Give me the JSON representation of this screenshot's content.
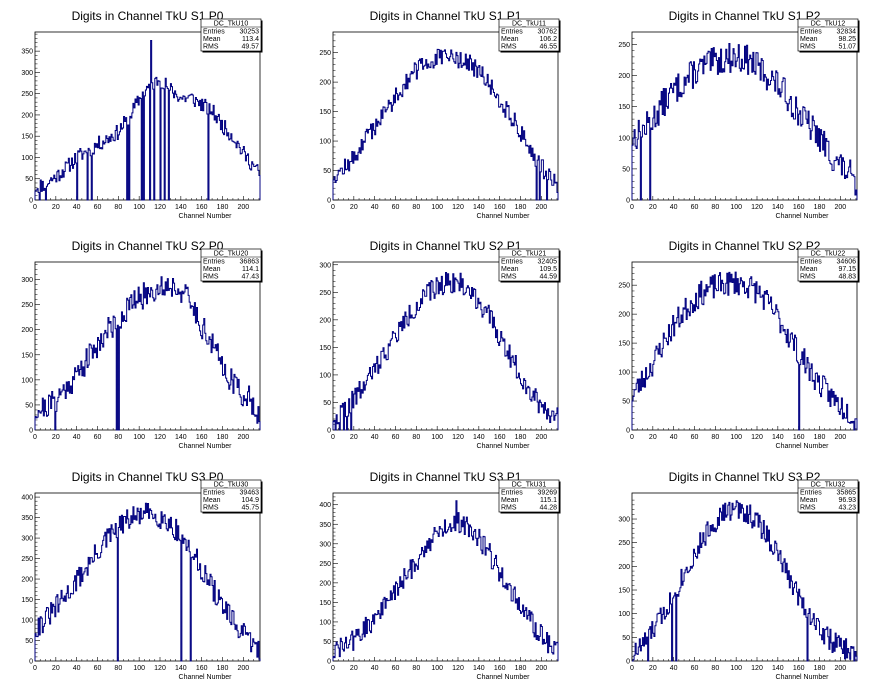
{
  "colors": {
    "line": "#000080",
    "frame": "#000000",
    "background": "#ffffff"
  },
  "chart_data": [
    {
      "type": "histogram",
      "title": "Digits in Channel TkU S1 P0",
      "xlabel": "Channel Number",
      "ylabel": "",
      "xlim": [
        0,
        216
      ],
      "ylim": [
        0,
        395
      ],
      "xticks": [
        0,
        20,
        40,
        60,
        80,
        100,
        120,
        140,
        160,
        180,
        200
      ],
      "yticks": [
        0,
        50,
        100,
        150,
        200,
        250,
        300,
        350
      ],
      "stats": {
        "name": "DC_TkU10",
        "entries": "30253",
        "mean": "113.4",
        "rms": "49.57"
      },
      "profile": [
        [
          0,
          30
        ],
        [
          10,
          38
        ],
        [
          20,
          55
        ],
        [
          30,
          75
        ],
        [
          40,
          100
        ],
        [
          50,
          115
        ],
        [
          60,
          130
        ],
        [
          70,
          145
        ],
        [
          80,
          160
        ],
        [
          90,
          195
        ],
        [
          100,
          235
        ],
        [
          110,
          270
        ],
        [
          120,
          285
        ],
        [
          130,
          260
        ],
        [
          140,
          240
        ],
        [
          150,
          240
        ],
        [
          160,
          225
        ],
        [
          170,
          210
        ],
        [
          180,
          175
        ],
        [
          190,
          150
        ],
        [
          200,
          110
        ],
        [
          210,
          80
        ],
        [
          216,
          60
        ]
      ],
      "drops": [
        [
          4,
          0
        ],
        [
          10,
          0
        ],
        [
          40,
          0
        ],
        [
          50,
          0
        ],
        [
          54,
          0
        ],
        [
          88,
          0
        ],
        [
          90,
          0
        ],
        [
          102,
          0
        ],
        [
          104,
          0
        ],
        [
          110,
          0
        ],
        [
          114,
          0
        ],
        [
          120,
          0
        ],
        [
          124,
          0
        ],
        [
          128,
          0
        ],
        [
          166,
          0
        ]
      ],
      "spikes": [
        [
          111,
          375
        ]
      ],
      "noise": 9,
      "seed": 11
    },
    {
      "type": "histogram",
      "title": "Digits in Channel TkU S1 P1",
      "xlabel": "Channel Number",
      "ylabel": "",
      "xlim": [
        0,
        216
      ],
      "ylim": [
        0,
        285
      ],
      "xticks": [
        0,
        20,
        40,
        60,
        80,
        100,
        120,
        140,
        160,
        180,
        200
      ],
      "yticks": [
        0,
        50,
        100,
        150,
        200,
        250
      ],
      "stats": {
        "name": "DC_TkU11",
        "entries": "30762",
        "mean": "106.2",
        "rms": "46.55"
      },
      "profile": [
        [
          0,
          42
        ],
        [
          10,
          52
        ],
        [
          20,
          70
        ],
        [
          30,
          100
        ],
        [
          40,
          125
        ],
        [
          50,
          150
        ],
        [
          60,
          175
        ],
        [
          70,
          200
        ],
        [
          80,
          220
        ],
        [
          90,
          232
        ],
        [
          100,
          240
        ],
        [
          110,
          242
        ],
        [
          120,
          240
        ],
        [
          130,
          232
        ],
        [
          140,
          218
        ],
        [
          150,
          195
        ],
        [
          160,
          170
        ],
        [
          170,
          145
        ],
        [
          180,
          115
        ],
        [
          190,
          85
        ],
        [
          200,
          55
        ],
        [
          210,
          40
        ],
        [
          216,
          25
        ]
      ],
      "drops": [
        [
          195,
          0
        ],
        [
          198,
          0
        ],
        [
          205,
          0
        ]
      ],
      "spikes": [],
      "noise": 8,
      "seed": 12
    },
    {
      "type": "histogram",
      "title": "Digits in Channel TkU S1 P2",
      "xlabel": "Channel Number",
      "ylabel": "",
      "xlim": [
        0,
        216
      ],
      "ylim": [
        0,
        270
      ],
      "xticks": [
        0,
        20,
        40,
        60,
        80,
        100,
        120,
        140,
        160,
        180,
        200
      ],
      "yticks": [
        0,
        50,
        100,
        150,
        200,
        250
      ],
      "stats": {
        "name": "DC_TkU12",
        "entries": "32834",
        "mean": "98.25",
        "rms": "51.07"
      },
      "profile": [
        [
          0,
          100
        ],
        [
          10,
          110
        ],
        [
          20,
          130
        ],
        [
          30,
          155
        ],
        [
          40,
          175
        ],
        [
          50,
          190
        ],
        [
          60,
          205
        ],
        [
          70,
          215
        ],
        [
          80,
          222
        ],
        [
          90,
          228
        ],
        [
          100,
          230
        ],
        [
          110,
          226
        ],
        [
          120,
          215
        ],
        [
          130,
          200
        ],
        [
          140,
          185
        ],
        [
          150,
          165
        ],
        [
          160,
          140
        ],
        [
          170,
          120
        ],
        [
          180,
          100
        ],
        [
          190,
          75
        ],
        [
          200,
          55
        ],
        [
          210,
          40
        ],
        [
          216,
          0
        ]
      ],
      "drops": [
        [
          8,
          0
        ],
        [
          17,
          0
        ]
      ],
      "spikes": [],
      "noise": 12,
      "seed": 13
    },
    {
      "type": "histogram",
      "title": "Digits in Channel TkU S2 P0",
      "xlabel": "Channel Number",
      "ylabel": "",
      "xlim": [
        0,
        216
      ],
      "ylim": [
        0,
        335
      ],
      "xticks": [
        0,
        20,
        40,
        60,
        80,
        100,
        120,
        140,
        160,
        180,
        200
      ],
      "yticks": [
        0,
        50,
        100,
        150,
        200,
        250,
        300
      ],
      "stats": {
        "name": "DC_TkU20",
        "entries": "36863",
        "mean": "114.1",
        "rms": "47.43"
      },
      "profile": [
        [
          0,
          40
        ],
        [
          10,
          45
        ],
        [
          20,
          60
        ],
        [
          30,
          85
        ],
        [
          40,
          110
        ],
        [
          50,
          140
        ],
        [
          60,
          170
        ],
        [
          70,
          200
        ],
        [
          80,
          220
        ],
        [
          90,
          245
        ],
        [
          100,
          262
        ],
        [
          110,
          275
        ],
        [
          120,
          285
        ],
        [
          130,
          290
        ],
        [
          140,
          280
        ],
        [
          150,
          250
        ],
        [
          160,
          210
        ],
        [
          170,
          170
        ],
        [
          180,
          130
        ],
        [
          190,
          95
        ],
        [
          200,
          70
        ],
        [
          210,
          55
        ],
        [
          216,
          25
        ]
      ],
      "drops": [
        [
          19,
          0
        ],
        [
          78,
          0
        ],
        [
          80,
          0
        ]
      ],
      "spikes": [],
      "noise": 13,
      "seed": 21
    },
    {
      "type": "histogram",
      "title": "Digits in Channel TkU S2 P1",
      "xlabel": "Channel Number",
      "ylabel": "",
      "xlim": [
        0,
        216
      ],
      "ylim": [
        0,
        305
      ],
      "xticks": [
        0,
        20,
        40,
        60,
        80,
        100,
        120,
        140,
        160,
        180,
        200
      ],
      "yticks": [
        0,
        50,
        100,
        150,
        200,
        250,
        300
      ],
      "stats": {
        "name": "DC_TkU21",
        "entries": "32405",
        "mean": "109.5",
        "rms": "44.59"
      },
      "profile": [
        [
          0,
          25
        ],
        [
          10,
          35
        ],
        [
          20,
          55
        ],
        [
          30,
          80
        ],
        [
          40,
          110
        ],
        [
          50,
          140
        ],
        [
          60,
          170
        ],
        [
          70,
          200
        ],
        [
          80,
          225
        ],
        [
          90,
          245
        ],
        [
          100,
          260
        ],
        [
          110,
          270
        ],
        [
          120,
          268
        ],
        [
          130,
          255
        ],
        [
          140,
          235
        ],
        [
          150,
          205
        ],
        [
          160,
          170
        ],
        [
          170,
          135
        ],
        [
          180,
          100
        ],
        [
          190,
          70
        ],
        [
          200,
          45
        ],
        [
          210,
          30
        ],
        [
          216,
          20
        ]
      ],
      "drops": [
        [
          2,
          0
        ],
        [
          6,
          0
        ],
        [
          10,
          0
        ],
        [
          13,
          0
        ],
        [
          17,
          0
        ]
      ],
      "spikes": [],
      "noise": 10,
      "seed": 22
    },
    {
      "type": "histogram",
      "title": "Digits in Channel TkU S2 P2",
      "xlabel": "Channel Number",
      "ylabel": "",
      "xlim": [
        0,
        216
      ],
      "ylim": [
        0,
        290
      ],
      "xticks": [
        0,
        20,
        40,
        60,
        80,
        100,
        120,
        140,
        160,
        180,
        200
      ],
      "yticks": [
        0,
        50,
        100,
        150,
        200,
        250
      ],
      "stats": {
        "name": "DC_TkU22",
        "entries": "34606",
        "mean": "97.15",
        "rms": "48.83"
      },
      "profile": [
        [
          0,
          60
        ],
        [
          10,
          85
        ],
        [
          20,
          115
        ],
        [
          30,
          150
        ],
        [
          40,
          180
        ],
        [
          50,
          205
        ],
        [
          60,
          225
        ],
        [
          70,
          240
        ],
        [
          80,
          248
        ],
        [
          90,
          252
        ],
        [
          100,
          255
        ],
        [
          110,
          250
        ],
        [
          120,
          240
        ],
        [
          130,
          220
        ],
        [
          140,
          195
        ],
        [
          150,
          165
        ],
        [
          160,
          135
        ],
        [
          170,
          105
        ],
        [
          180,
          80
        ],
        [
          190,
          60
        ],
        [
          200,
          42
        ],
        [
          210,
          30
        ],
        [
          216,
          10
        ]
      ],
      "drops": [
        [
          160,
          0
        ]
      ],
      "spikes": [],
      "noise": 11,
      "seed": 23
    },
    {
      "type": "histogram",
      "title": "Digits in Channel TkU S3 P0",
      "xlabel": "Channel Number",
      "ylabel": "",
      "xlim": [
        0,
        216
      ],
      "ylim": [
        0,
        410
      ],
      "xticks": [
        0,
        20,
        40,
        60,
        80,
        100,
        120,
        140,
        160,
        180,
        200
      ],
      "yticks": [
        0,
        50,
        100,
        150,
        200,
        250,
        300,
        350,
        400
      ],
      "stats": {
        "name": "DC_TkU30",
        "entries": "39463",
        "mean": "104.9",
        "rms": "45.75"
      },
      "profile": [
        [
          0,
          80
        ],
        [
          10,
          100
        ],
        [
          20,
          130
        ],
        [
          30,
          160
        ],
        [
          40,
          195
        ],
        [
          50,
          230
        ],
        [
          60,
          265
        ],
        [
          70,
          300
        ],
        [
          80,
          325
        ],
        [
          90,
          345
        ],
        [
          100,
          355
        ],
        [
          110,
          360
        ],
        [
          120,
          352
        ],
        [
          130,
          335
        ],
        [
          140,
          305
        ],
        [
          150,
          270
        ],
        [
          160,
          225
        ],
        [
          170,
          180
        ],
        [
          180,
          135
        ],
        [
          190,
          95
        ],
        [
          200,
          65
        ],
        [
          210,
          40
        ],
        [
          216,
          20
        ]
      ],
      "drops": [
        [
          79,
          0
        ],
        [
          140,
          0
        ],
        [
          149,
          0
        ]
      ],
      "spikes": [],
      "noise": 14,
      "seed": 31
    },
    {
      "type": "histogram",
      "title": "Digits in Channel TkU S3 P1",
      "xlabel": "Channel Number",
      "ylabel": "",
      "xlim": [
        0,
        216
      ],
      "ylim": [
        0,
        430
      ],
      "xticks": [
        0,
        20,
        40,
        60,
        80,
        100,
        120,
        140,
        160,
        180,
        200
      ],
      "yticks": [
        0,
        50,
        100,
        150,
        200,
        250,
        300,
        350,
        400
      ],
      "stats": {
        "name": "DC_TkU31",
        "entries": "39269",
        "mean": "115.1",
        "rms": "44.28"
      },
      "profile": [
        [
          0,
          25
        ],
        [
          10,
          35
        ],
        [
          20,
          55
        ],
        [
          30,
          80
        ],
        [
          40,
          110
        ],
        [
          50,
          145
        ],
        [
          60,
          180
        ],
        [
          70,
          215
        ],
        [
          80,
          255
        ],
        [
          90,
          295
        ],
        [
          100,
          325
        ],
        [
          110,
          350
        ],
        [
          120,
          355
        ],
        [
          130,
          345
        ],
        [
          140,
          315
        ],
        [
          150,
          275
        ],
        [
          160,
          230
        ],
        [
          170,
          185
        ],
        [
          180,
          140
        ],
        [
          190,
          100
        ],
        [
          200,
          65
        ],
        [
          210,
          40
        ],
        [
          216,
          25
        ]
      ],
      "drops": [],
      "spikes": [
        [
          118,
          410
        ]
      ],
      "noise": 14,
      "seed": 32
    },
    {
      "type": "histogram",
      "title": "Digits in Channel TkU S3 P2",
      "xlabel": "Channel Number",
      "ylabel": "",
      "xlim": [
        0,
        216
      ],
      "ylim": [
        0,
        355
      ],
      "xticks": [
        0,
        20,
        40,
        60,
        80,
        100,
        120,
        140,
        160,
        180,
        200
      ],
      "yticks": [
        0,
        50,
        100,
        150,
        200,
        250,
        300
      ],
      "stats": {
        "name": "DC_TkU32",
        "entries": "35865",
        "mean": "96.93",
        "rms": "43.23"
      },
      "profile": [
        [
          0,
          10
        ],
        [
          10,
          35
        ],
        [
          20,
          65
        ],
        [
          30,
          100
        ],
        [
          40,
          140
        ],
        [
          50,
          185
        ],
        [
          60,
          225
        ],
        [
          70,
          265
        ],
        [
          80,
          295
        ],
        [
          90,
          315
        ],
        [
          100,
          320
        ],
        [
          110,
          315
        ],
        [
          120,
          295
        ],
        [
          130,
          265
        ],
        [
          140,
          225
        ],
        [
          150,
          180
        ],
        [
          160,
          140
        ],
        [
          170,
          100
        ],
        [
          180,
          70
        ],
        [
          190,
          45
        ],
        [
          200,
          30
        ],
        [
          210,
          20
        ],
        [
          216,
          5
        ]
      ],
      "drops": [
        [
          15,
          0
        ],
        [
          38,
          0
        ],
        [
          42,
          0
        ],
        [
          168,
          0
        ]
      ],
      "spikes": [],
      "noise": 12,
      "seed": 33
    }
  ]
}
